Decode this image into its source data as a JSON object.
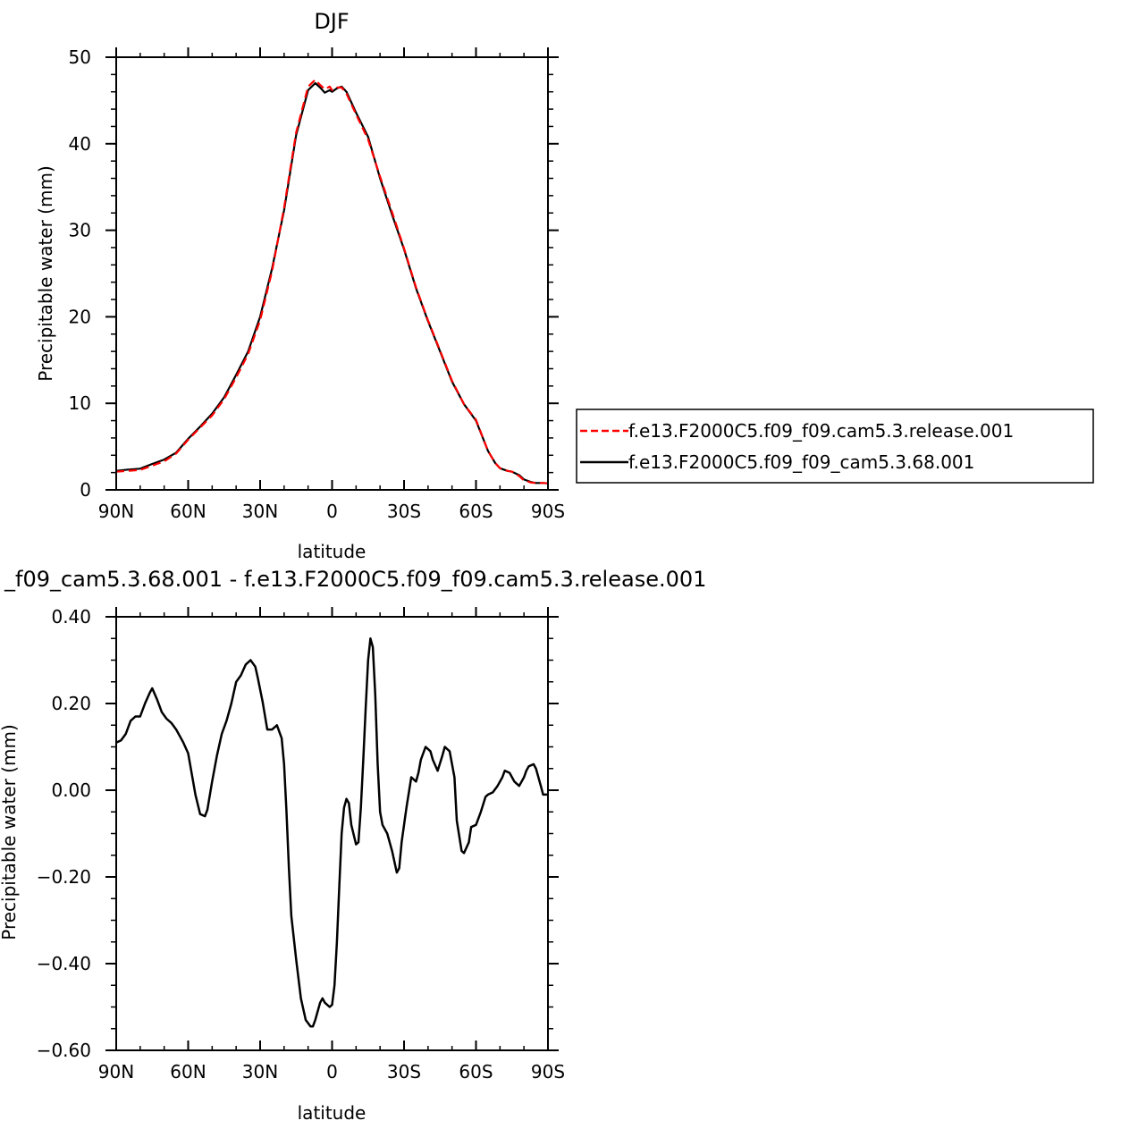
{
  "chart_data": [
    {
      "type": "line",
      "title": "DJF",
      "xlabel": "latitude",
      "ylabel": "Precipitable water (mm)",
      "xlim": [
        90,
        -90
      ],
      "ylim": [
        0,
        50
      ],
      "x_ticks": [
        {
          "value": 90,
          "label": "90N"
        },
        {
          "value": 60,
          "label": "60N"
        },
        {
          "value": 30,
          "label": "30N"
        },
        {
          "value": 0,
          "label": "0"
        },
        {
          "value": -30,
          "label": "30S"
        },
        {
          "value": -60,
          "label": "60S"
        },
        {
          "value": -90,
          "label": "90S"
        }
      ],
      "y_ticks": [
        {
          "value": 0,
          "label": "0"
        },
        {
          "value": 10,
          "label": "10"
        },
        {
          "value": 20,
          "label": "20"
        },
        {
          "value": 30,
          "label": "30"
        },
        {
          "value": 40,
          "label": "40"
        },
        {
          "value": 50,
          "label": "50"
        }
      ],
      "legend_position": "right",
      "series": [
        {
          "name": "f.e13.F2000C5.f09_f09.cam5.3.release.001",
          "color": "#ff0000",
          "dash": "dashed",
          "x": [
            90,
            85,
            80,
            75,
            70,
            65,
            60,
            55,
            50,
            45,
            40,
            35,
            30,
            25,
            20,
            15,
            10,
            7,
            5,
            3,
            1,
            0,
            -2,
            -4,
            -6,
            -10,
            -15,
            -20,
            -25,
            -30,
            -35,
            -40,
            -45,
            -50,
            -55,
            -60,
            -65,
            -68,
            -70,
            -73,
            -75,
            -78,
            -80,
            -83,
            -85,
            -88,
            -90
          ],
          "y": [
            2.1,
            2.2,
            2.3,
            2.8,
            3.3,
            4.2,
            5.8,
            7.2,
            8.6,
            10.5,
            13.0,
            15.7,
            19.6,
            25.3,
            32.6,
            41.3,
            46.6,
            47.4,
            46.8,
            46.3,
            46.6,
            46.2,
            46.5,
            46.5,
            45.8,
            43.4,
            40.5,
            36.2,
            32.1,
            27.9,
            23.4,
            19.6,
            16.1,
            12.6,
            9.9,
            8.1,
            4.5,
            3.1,
            2.5,
            2.2,
            2.1,
            1.6,
            1.1,
            0.85,
            0.8,
            0.8,
            0.75
          ]
        },
        {
          "name": "f.e13.F2000C5.f09_f09_cam5.3.68.001",
          "color": "#000000",
          "dash": "solid",
          "x": [
            90,
            85,
            80,
            75,
            70,
            65,
            60,
            55,
            50,
            45,
            40,
            35,
            30,
            25,
            20,
            15,
            10,
            7,
            5,
            3,
            1,
            0,
            -2,
            -4,
            -6,
            -10,
            -15,
            -20,
            -25,
            -30,
            -35,
            -40,
            -45,
            -50,
            -55,
            -60,
            -65,
            -68,
            -70,
            -73,
            -75,
            -78,
            -80,
            -83,
            -85,
            -88,
            -90
          ],
          "y": [
            2.2,
            2.35,
            2.45,
            3.0,
            3.5,
            4.3,
            5.9,
            7.3,
            8.8,
            10.7,
            13.3,
            16.0,
            20.0,
            25.6,
            32.3,
            41.0,
            46.2,
            47.0,
            46.5,
            45.9,
            46.2,
            46.0,
            46.4,
            46.6,
            46.0,
            43.6,
            40.8,
            36.0,
            31.8,
            27.8,
            23.3,
            19.5,
            16.0,
            12.5,
            9.9,
            8.0,
            4.5,
            3.1,
            2.5,
            2.2,
            2.1,
            1.7,
            1.2,
            0.9,
            0.8,
            0.8,
            0.75
          ]
        }
      ]
    },
    {
      "type": "line",
      "title": "_f09_cam5.3.68.001 - f.e13.F2000C5.f09_f09.cam5.3.release.001",
      "xlabel": "latitude",
      "ylabel": "Precipitable water (mm)",
      "xlim": [
        90,
        -90
      ],
      "ylim": [
        -0.6,
        0.4
      ],
      "x_ticks": [
        {
          "value": 90,
          "label": "90N"
        },
        {
          "value": 60,
          "label": "60N"
        },
        {
          "value": 30,
          "label": "30N"
        },
        {
          "value": 0,
          "label": "0"
        },
        {
          "value": -30,
          "label": "30S"
        },
        {
          "value": -60,
          "label": "60S"
        },
        {
          "value": -90,
          "label": "90S"
        }
      ],
      "y_ticks": [
        {
          "value": 0.4,
          "label": "0.40"
        },
        {
          "value": 0.2,
          "label": "0.20"
        },
        {
          "value": 0.0,
          "label": "0.00"
        },
        {
          "value": -0.2,
          "label": "−0.20"
        },
        {
          "value": -0.4,
          "label": "−0.40"
        },
        {
          "value": -0.6,
          "label": "−0.60"
        }
      ],
      "series": [
        {
          "color": "#000000",
          "dash": "solid",
          "x": [
            90,
            88,
            86,
            84,
            82,
            80,
            78,
            76,
            75,
            73,
            71,
            69,
            67,
            65,
            62,
            60,
            57,
            55,
            53,
            52,
            50,
            48,
            46,
            44,
            42,
            40,
            38,
            36,
            34,
            32,
            31,
            29,
            27,
            25,
            23,
            21,
            20,
            19,
            18,
            17,
            15,
            13,
            11,
            9,
            8,
            7,
            5,
            4,
            3,
            1,
            0,
            -1,
            -2,
            -3,
            -4,
            -5,
            -6,
            -7,
            -8,
            -10,
            -11,
            -12,
            -13,
            -14,
            -15,
            -16,
            -17,
            -18,
            -19,
            -20,
            -21,
            -23,
            -25,
            -27,
            -28,
            -29,
            -31,
            -33,
            -35,
            -36,
            -37,
            -39,
            -41,
            -42,
            -44,
            -46,
            -47,
            -49,
            -51,
            -52,
            -54,
            -55,
            -57,
            -58,
            -60,
            -62,
            -64,
            -65,
            -67,
            -69,
            -71,
            -72,
            -74,
            -76,
            -78,
            -80,
            -81,
            -82,
            -84,
            -85,
            -87,
            -88,
            -90
          ],
          "y": [
            0.11,
            0.115,
            0.13,
            0.16,
            0.17,
            0.17,
            0.2,
            0.225,
            0.235,
            0.21,
            0.18,
            0.165,
            0.155,
            0.14,
            0.11,
            0.085,
            -0.01,
            -0.055,
            -0.06,
            -0.045,
            0.02,
            0.08,
            0.13,
            0.16,
            0.2,
            0.25,
            0.265,
            0.29,
            0.3,
            0.285,
            0.26,
            0.205,
            0.14,
            0.14,
            0.15,
            0.12,
            0.06,
            -0.05,
            -0.18,
            -0.29,
            -0.39,
            -0.48,
            -0.53,
            -0.545,
            -0.545,
            -0.53,
            -0.49,
            -0.48,
            -0.49,
            -0.5,
            -0.495,
            -0.45,
            -0.35,
            -0.22,
            -0.1,
            -0.04,
            -0.02,
            -0.03,
            -0.08,
            -0.125,
            -0.12,
            -0.04,
            0.07,
            0.19,
            0.3,
            0.35,
            0.33,
            0.22,
            0.06,
            -0.05,
            -0.08,
            -0.1,
            -0.14,
            -0.19,
            -0.18,
            -0.12,
            -0.04,
            0.03,
            0.02,
            0.04,
            0.07,
            0.1,
            0.09,
            0.07,
            0.045,
            0.08,
            0.1,
            0.09,
            0.03,
            -0.07,
            -0.14,
            -0.145,
            -0.12,
            -0.085,
            -0.08,
            -0.05,
            -0.015,
            -0.01,
            -0.005,
            0.01,
            0.03,
            0.045,
            0.04,
            0.02,
            0.01,
            0.03,
            0.045,
            0.055,
            0.06,
            0.05,
            0.01,
            -0.01,
            -0.01
          ]
        }
      ]
    }
  ]
}
